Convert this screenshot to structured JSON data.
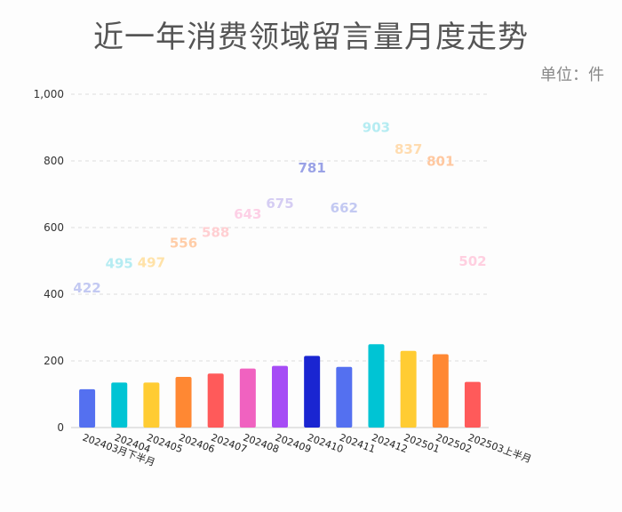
{
  "title": "近一年消费领域留言量月度走势",
  "unit": "单位：件",
  "colors": {
    "grid": "#dddddd",
    "axis": "#cccccc",
    "palette": [
      "#5470f0",
      "#00c4d4",
      "#ffcc33",
      "#ff8833",
      "#ff5a5a",
      "#f062c0",
      "#a64cf5",
      "#1a25d1"
    ]
  },
  "chart_data": {
    "type": "bar",
    "categories": [
      "202403月下半月",
      "202404",
      "202405",
      "202406",
      "202407",
      "202408",
      "202409",
      "202410",
      "202411",
      "202412",
      "202501",
      "202502",
      "202503上半月"
    ],
    "values": [
      115,
      135,
      135,
      152,
      162,
      177,
      185,
      215,
      182,
      250,
      230,
      220,
      137
    ],
    "data_labels": [
      "422",
      "495",
      "497",
      "556",
      "588",
      "643",
      "675",
      "781",
      "662",
      "903",
      "837",
      "801",
      "502"
    ],
    "data_label_values": [
      422,
      495,
      497,
      556,
      588,
      643,
      675,
      781,
      662,
      903,
      837,
      801,
      502
    ],
    "bar_colors": [
      "#5470f0",
      "#00c4d4",
      "#ffcc33",
      "#ff8833",
      "#ff5a5a",
      "#f062c0",
      "#a64cf5",
      "#1a25d1",
      "#5470f0",
      "#00c4d4",
      "#ffcc33",
      "#ff8833",
      "#ff5a5a"
    ],
    "label_colors": [
      "#c3c9f2",
      "#b5ecf2",
      "#ffe2a8",
      "#ffcda8",
      "#ffcfd2",
      "#fdd0e6",
      "#d5cdf3",
      "#9aa2e6",
      "#c3c9f2",
      "#b5ecf2",
      "#ffdcb0",
      "#ffc8a0",
      "#ffcfe0"
    ],
    "ylim": [
      0,
      1000
    ],
    "yticks": [
      "0",
      "200",
      "400",
      "600",
      "800",
      "1,000"
    ],
    "ytick_values": [
      0,
      200,
      400,
      600,
      800,
      1000
    ],
    "grid": true
  }
}
